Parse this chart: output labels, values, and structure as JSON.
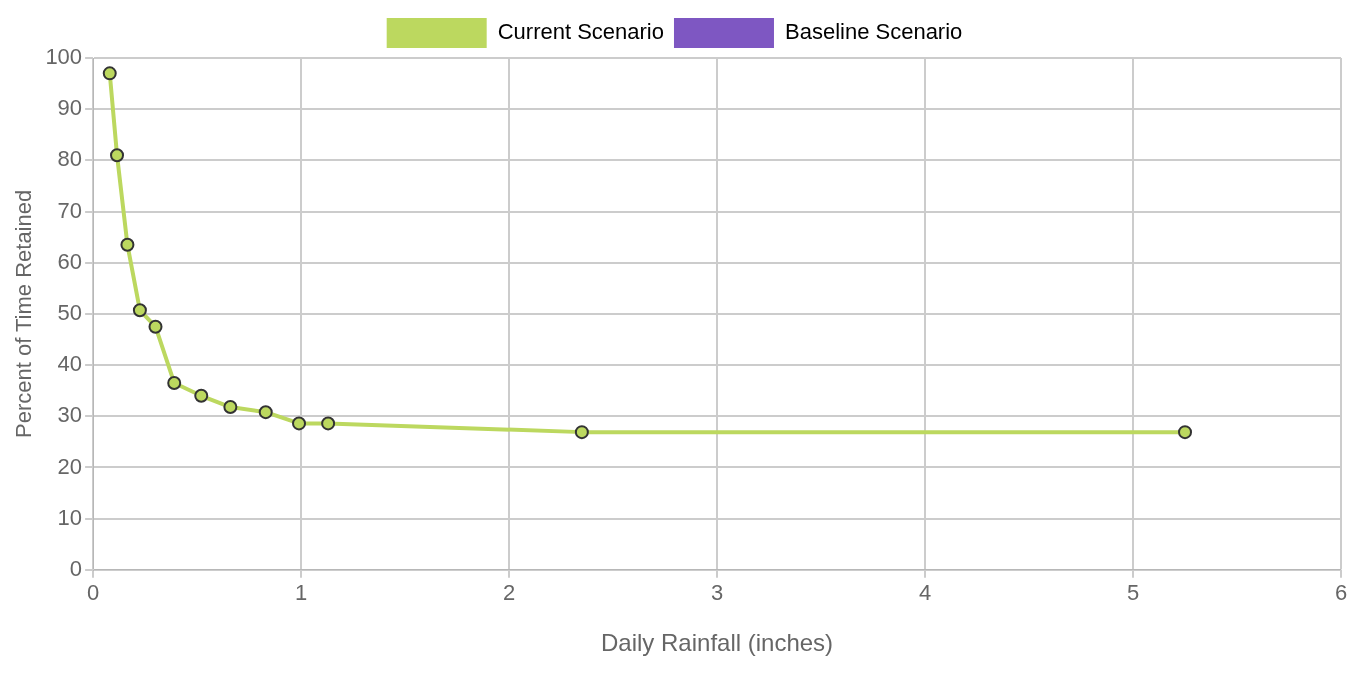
{
  "chart_data": {
    "type": "line",
    "xlabel": "Daily Rainfall (inches)",
    "ylabel": "Percent of Time Retained",
    "x": [
      0.08,
      0.115,
      0.165,
      0.225,
      0.3,
      0.39,
      0.52,
      0.66,
      0.83,
      0.99,
      1.13,
      2.35,
      5.25
    ],
    "series": [
      {
        "name": "Current Scenario",
        "color": "#bcd85f",
        "values": [
          97,
          81,
          63.5,
          50.7,
          47.5,
          36.5,
          34,
          31.8,
          30.8,
          28.6,
          28.6,
          26.9,
          26.9
        ]
      },
      {
        "name": "Baseline Scenario",
        "color": "#7e57c2",
        "values": [
          null,
          null,
          null,
          null,
          null,
          null,
          null,
          null,
          null,
          null,
          null,
          null,
          null
        ]
      }
    ],
    "xlim": [
      0,
      6
    ],
    "xticks": [
      0,
      1,
      2,
      3,
      4,
      5,
      6
    ],
    "ylim": [
      0,
      100
    ],
    "yticks": [
      0,
      10,
      20,
      30,
      40,
      50,
      60,
      70,
      80,
      90,
      100
    ],
    "grid": true,
    "legend": "top",
    "marker": "circle"
  }
}
